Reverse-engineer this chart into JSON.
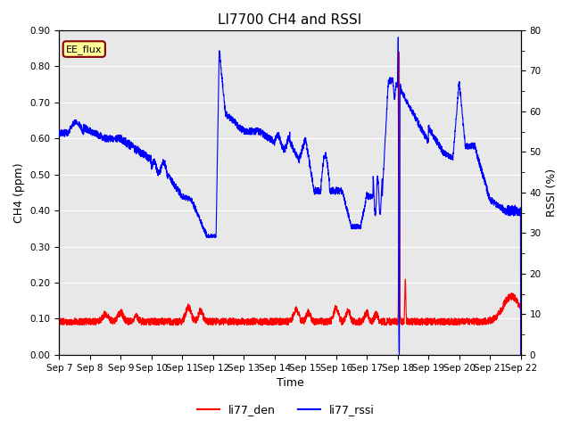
{
  "title": "LI7700 CH4 and RSSI",
  "xlabel": "Time",
  "ylabel_left": "CH4 (ppm)",
  "ylabel_right": "RSSI (%)",
  "ylim_left": [
    0.0,
    0.9
  ],
  "ylim_right": [
    0,
    80
  ],
  "yticks_left": [
    0.0,
    0.1,
    0.2,
    0.3,
    0.4,
    0.5,
    0.6,
    0.7,
    0.8,
    0.9
  ],
  "yticks_right": [
    0,
    10,
    20,
    30,
    40,
    50,
    60,
    70,
    80
  ],
  "color_ch4": "#ff0000",
  "color_rssi": "#0000ff",
  "legend_label_ch4": "li77_den",
  "legend_label_rssi": "li77_rssi",
  "annotation_text": "EE_flux",
  "background_color": "#e8e8e8",
  "grid_color": "#ffffff",
  "title_fontsize": 11,
  "linewidth": 0.8,
  "tick_fontsize": 7.5
}
